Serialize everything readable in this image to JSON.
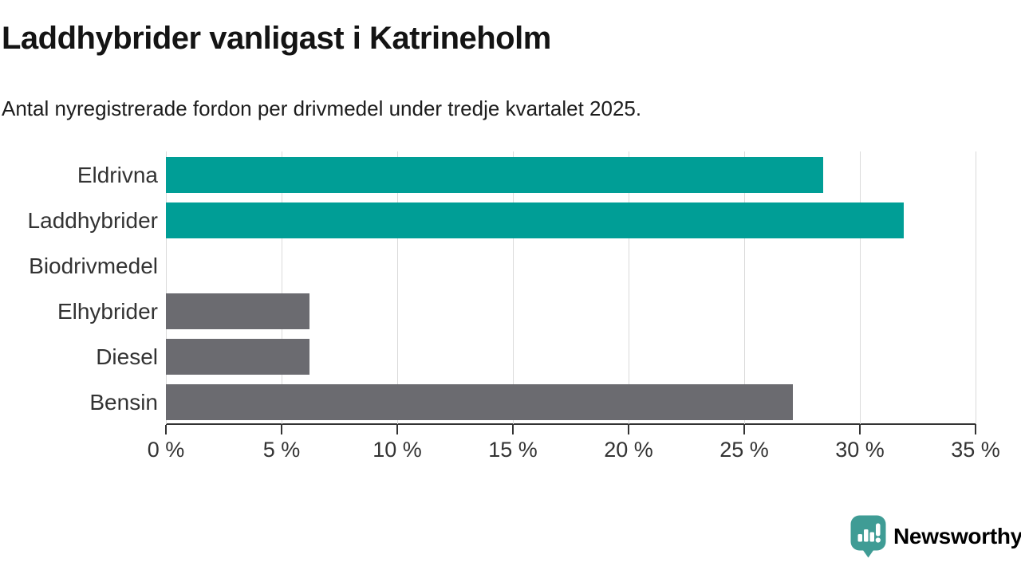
{
  "header": {
    "title": "Laddhybrider vanligast i Katrineholm",
    "subtitle": "Antal nyregistrerade fordon per drivmedel under tredje kvartalet 2025."
  },
  "chart_data": {
    "type": "bar",
    "orientation": "horizontal",
    "title": "Laddhybrider vanligast i Katrineholm",
    "subtitle": "Antal nyregistrerade fordon per drivmedel under tredje kvartalet 2025.",
    "categories": [
      "Eldrivna",
      "Laddhybrider",
      "Biodrivmedel",
      "Elhybrider",
      "Diesel",
      "Bensin"
    ],
    "values": [
      28.4,
      31.9,
      0,
      6.2,
      6.2,
      27.1
    ],
    "unit": "percent",
    "xlim": [
      0,
      35
    ],
    "x_tick_step": 5,
    "x_tick_labels": [
      "0 %",
      "5 %",
      "10 %",
      "15 %",
      "20 %",
      "25 %",
      "30 %",
      "35 %"
    ],
    "bar_colors": [
      "#009E96",
      "#009E96",
      "#6B6B70",
      "#6B6B70",
      "#6B6B70",
      "#6B6B70"
    ],
    "highlight_color": "#009E96",
    "default_color": "#6B6B70",
    "grid": true,
    "gridline_color": "#DADADA",
    "axis_color": "#333333",
    "label_color": "#333333",
    "legend": "none"
  },
  "branding": {
    "logo_text": "Newsworthy",
    "logo_color": "#3F9C95",
    "logo_icon": "newsworthy-bar-chart-bubble-icon"
  }
}
